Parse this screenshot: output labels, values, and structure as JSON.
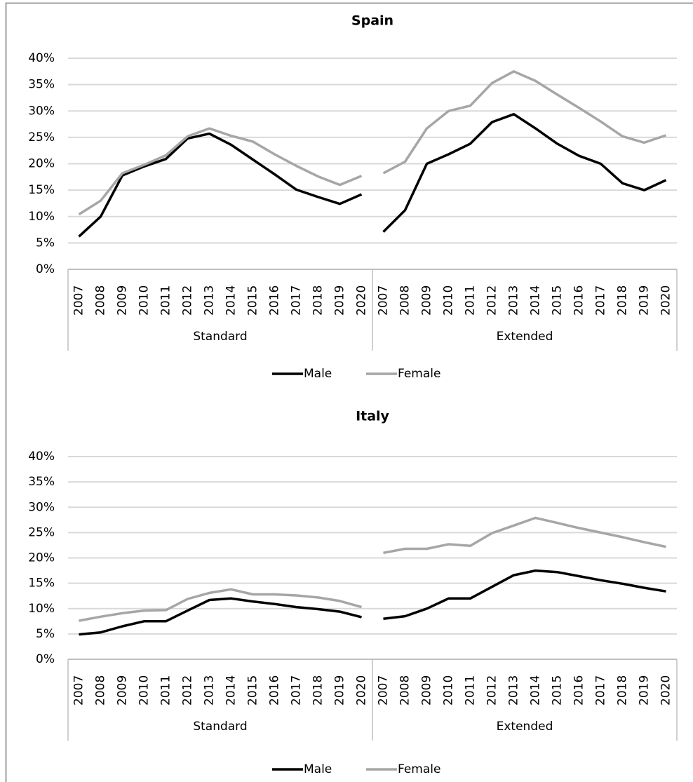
{
  "chart_data": [
    {
      "type": "line",
      "title": "Spain",
      "x_groups": [
        {
          "label": "Standard",
          "categories": [
            "2007",
            "2008",
            "2009",
            "2010",
            "2011",
            "2012",
            "2013",
            "2014",
            "2015",
            "2016",
            "2017",
            "2018",
            "2019",
            "2020"
          ]
        },
        {
          "label": "Extended",
          "categories": [
            "2007",
            "2008",
            "2009",
            "2010",
            "2011",
            "2012",
            "2013",
            "2014",
            "2015",
            "2016",
            "2017",
            "2018",
            "2019",
            "2020"
          ]
        }
      ],
      "series": [
        {
          "name": "Male",
          "color": "#000000",
          "values": [
            [
              6.2,
              10,
              17.8,
              19.5,
              20.9,
              24.8,
              25.7,
              23.6,
              20.8,
              18,
              15.1,
              13.7,
              12.4,
              14.2
            ],
            [
              7.1,
              11.2,
              20,
              21.8,
              23.8,
              27.9,
              29.4,
              26.7,
              23.8,
              21.5,
              20,
              16.3,
              15,
              16.9
            ]
          ]
        },
        {
          "name": "Female",
          "color": "#a6a6a6",
          "values": [
            [
              10.4,
              13,
              18.2,
              19.8,
              21.6,
              25.2,
              26.7,
              25.3,
              24.2,
              21.8,
              19.6,
              17.6,
              16,
              17.7
            ],
            [
              18.2,
              20.4,
              26.7,
              30,
              31,
              35.3,
              37.5,
              35.7,
              33.1,
              30.6,
              28,
              25.2,
              24,
              25.4
            ]
          ]
        }
      ],
      "ylim": [
        0,
        40
      ],
      "yticks": [
        {
          "value": 0,
          "label": "0%"
        },
        {
          "value": 5,
          "label": "5%"
        },
        {
          "value": 10,
          "label": "10%"
        },
        {
          "value": 15,
          "label": "15%"
        },
        {
          "value": 20,
          "label": "20%"
        },
        {
          "value": 25,
          "label": "25%"
        },
        {
          "value": 30,
          "label": "30%"
        },
        {
          "value": 35,
          "label": "35%"
        },
        {
          "value": 40,
          "label": "40%"
        }
      ],
      "grid": true,
      "legend": "bottom"
    },
    {
      "type": "line",
      "title": "Italy",
      "x_groups": [
        {
          "label": "Standard",
          "categories": [
            "2007",
            "2008",
            "2009",
            "2010",
            "2011",
            "2012",
            "2013",
            "2014",
            "2015",
            "2016",
            "2017",
            "2018",
            "2019",
            "2020"
          ]
        },
        {
          "label": "Extended",
          "categories": [
            "2007",
            "2008",
            "2009",
            "2010",
            "2011",
            "2012",
            "2013",
            "2014",
            "2015",
            "2016",
            "2017",
            "2018",
            "2019",
            "2020"
          ]
        }
      ],
      "series": [
        {
          "name": "Male",
          "color": "#000000",
          "values": [
            [
              4.9,
              5.3,
              6.5,
              7.5,
              7.5,
              9.6,
              11.7,
              12,
              11.4,
              10.9,
              10.3,
              9.9,
              9.4,
              8.3
            ],
            [
              8,
              8.5,
              10,
              12,
              12,
              14.3,
              16.6,
              17.5,
              17.2,
              16.4,
              15.6,
              14.9,
              14.1,
              13.4
            ]
          ]
        },
        {
          "name": "Female",
          "color": "#a6a6a6",
          "values": [
            [
              7.6,
              8.4,
              9.1,
              9.6,
              9.7,
              11.9,
              13.1,
              13.8,
              12.8,
              12.8,
              12.6,
              12.2,
              11.5,
              10.3
            ],
            [
              21,
              21.8,
              21.8,
              22.7,
              22.4,
              24.9,
              26.4,
              27.9,
              26.9,
              25.9,
              25,
              24.1,
              23.1,
              22.2
            ]
          ]
        }
      ],
      "ylim": [
        0,
        40
      ],
      "yticks": [
        {
          "value": 0,
          "label": "0%"
        },
        {
          "value": 5,
          "label": "5%"
        },
        {
          "value": 10,
          "label": "10%"
        },
        {
          "value": 15,
          "label": "15%"
        },
        {
          "value": 20,
          "label": "20%"
        },
        {
          "value": 25,
          "label": "25%"
        },
        {
          "value": 30,
          "label": "30%"
        },
        {
          "value": 35,
          "label": "35%"
        },
        {
          "value": 40,
          "label": "40%"
        }
      ],
      "grid": true,
      "legend": "bottom"
    }
  ]
}
